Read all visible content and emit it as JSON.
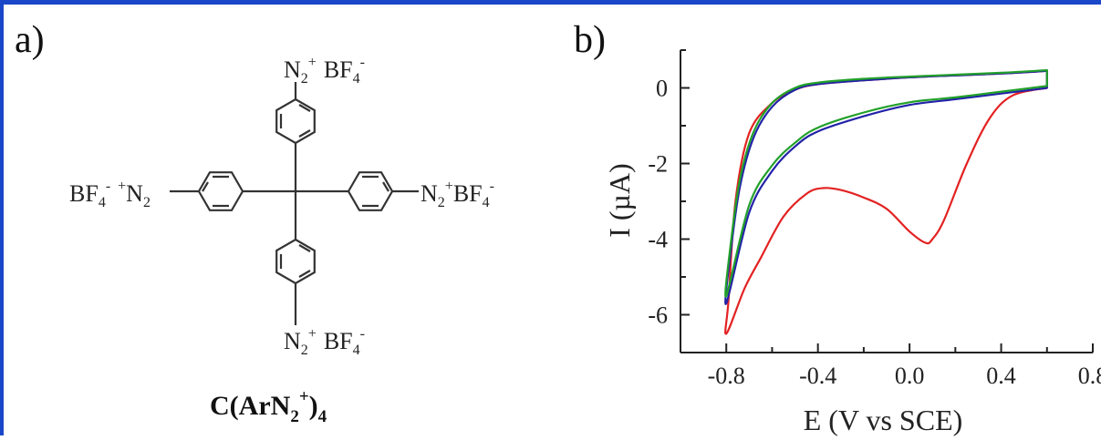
{
  "panel_a": {
    "label": "a)",
    "groups": {
      "top": {
        "n2": "N",
        "n2_sub": "2",
        "n2_sup": "+",
        "bf": "BF",
        "bf_sub": "4",
        "bf_sup": "-"
      },
      "left": {
        "bf": "BF",
        "bf_sub": "4",
        "bf_sup": "-",
        "n2_sup": "+",
        "n2": "N",
        "n2_sub": "2"
      },
      "right": {
        "n2": "N",
        "n2_sub": "2",
        "n2_sup": "+",
        "bf": "BF",
        "bf_sub": "4",
        "bf_sup": "-"
      },
      "bottom": {
        "n2": "N",
        "n2_sub": "2",
        "n2_sup": "+",
        "bf": "BF",
        "bf_sub": "4",
        "bf_sup": "-"
      }
    },
    "formula": {
      "c": "C(ArN",
      "sub2": "2",
      "sup": "+",
      "close": ")",
      "sub4": "4"
    }
  },
  "panel_b": {
    "label": "b)",
    "chart_data": {
      "type": "line",
      "xlabel": "E (V vs SCE)",
      "ylabel": "I (µA)",
      "xlim": [
        -1.0,
        0.8
      ],
      "ylim": [
        -7,
        1
      ],
      "xticks": [
        "-0.8",
        "-0.4",
        "0.0",
        "0.4",
        "0.8"
      ],
      "xtick_values": [
        -0.8,
        -0.4,
        0.0,
        0.4,
        0.8
      ],
      "yticks": [
        "0",
        "-2",
        "-4",
        "-6"
      ],
      "ytick_values": [
        0,
        -2,
        -4,
        -6
      ],
      "series": [
        {
          "color": "#e32222",
          "x": [
            0.6,
            0.45,
            0.35,
            0.25,
            0.15,
            0.1,
            0.07,
            0.0,
            -0.1,
            -0.2,
            -0.3,
            -0.38,
            -0.45,
            -0.55,
            -0.65,
            -0.72,
            -0.8,
            -0.79,
            -0.76,
            -0.7,
            -0.6,
            -0.5,
            -0.4,
            -0.2,
            0.0,
            0.2,
            0.4,
            0.6
          ],
          "y": [
            0.0,
            -0.2,
            -0.8,
            -2.0,
            -3.5,
            -4.0,
            -4.1,
            -3.8,
            -3.2,
            -2.9,
            -2.7,
            -2.65,
            -2.8,
            -3.4,
            -4.5,
            -5.3,
            -6.5,
            -5.6,
            -3.0,
            -1.2,
            -0.4,
            -0.05,
            0.1,
            0.2,
            0.28,
            0.33,
            0.38,
            0.45
          ]
        },
        {
          "color": "#2222a8",
          "x": [
            0.6,
            0.4,
            0.2,
            0.0,
            -0.2,
            -0.4,
            -0.5,
            -0.6,
            -0.7,
            -0.8,
            -0.78,
            -0.74,
            -0.68,
            -0.6,
            -0.5,
            -0.4,
            -0.2,
            0.0,
            0.2,
            0.4,
            0.6
          ],
          "y": [
            0.0,
            -0.15,
            -0.3,
            -0.45,
            -0.75,
            -1.15,
            -1.55,
            -2.2,
            -3.3,
            -5.7,
            -4.3,
            -2.6,
            -1.3,
            -0.5,
            -0.05,
            0.1,
            0.2,
            0.28,
            0.33,
            0.38,
            0.45
          ]
        },
        {
          "color": "#22a02a",
          "x": [
            0.6,
            0.4,
            0.2,
            0.0,
            -0.2,
            -0.4,
            -0.5,
            -0.6,
            -0.7,
            -0.8,
            -0.78,
            -0.74,
            -0.68,
            -0.6,
            -0.5,
            -0.4,
            -0.2,
            0.0,
            0.2,
            0.4,
            0.6
          ],
          "y": [
            0.05,
            -0.1,
            -0.25,
            -0.38,
            -0.65,
            -1.05,
            -1.45,
            -2.05,
            -3.1,
            -5.5,
            -4.1,
            -2.4,
            -1.15,
            -0.4,
            0.0,
            0.14,
            0.24,
            0.3,
            0.35,
            0.4,
            0.47
          ]
        }
      ],
      "grid": false,
      "legend": "none"
    }
  }
}
